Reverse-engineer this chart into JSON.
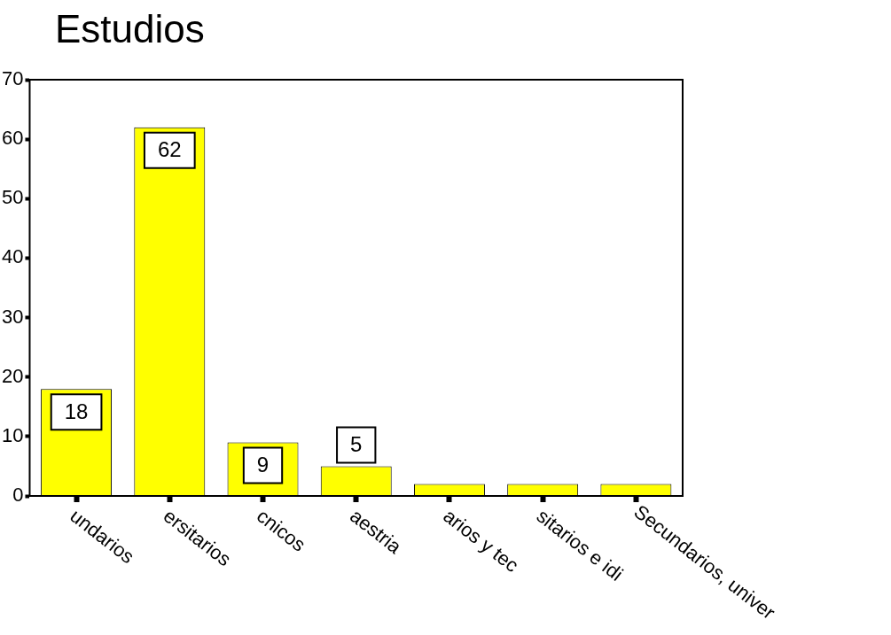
{
  "chart_data": {
    "type": "bar",
    "title": "Estudios",
    "categories": [
      "undarios",
      "ersitarios",
      "cnicos",
      "aestria",
      "arios y tec",
      "sitarios e idi",
      "Secundarios, univer"
    ],
    "values": [
      18,
      62,
      9,
      5,
      2,
      2,
      2
    ],
    "value_labels": [
      "18",
      "62",
      "9",
      "5",
      null,
      null,
      null
    ],
    "color": "#ffff00",
    "ylim": [
      0,
      70
    ],
    "yticks": [
      0,
      10,
      20,
      30,
      40,
      50,
      60,
      70
    ],
    "legend": false
  }
}
